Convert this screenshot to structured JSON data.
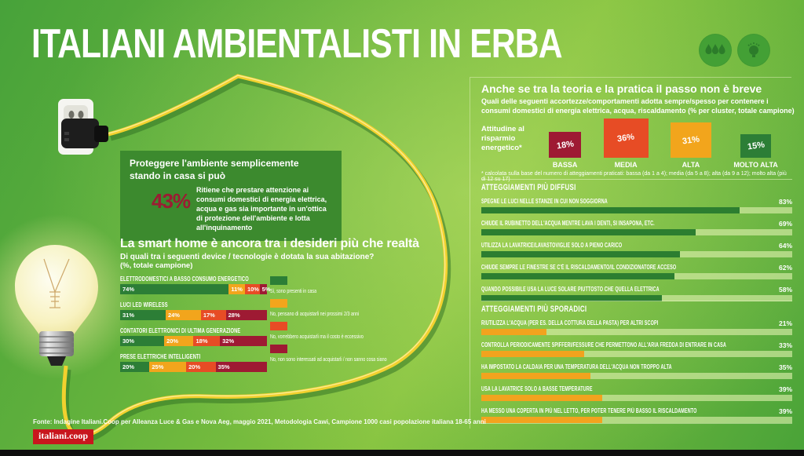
{
  "page": {
    "title": "ITALIANI AMBIENTALISTI IN ERBA",
    "footer_source": "Fonte: Indagine Italiani.Coop per Alleanza Luce & Gas e Nova Aeg, maggio 2021, Metodologia Cawi, Campione 1000 casi popolazione italiana 18-65 anni",
    "logo_text": "italiani.coop"
  },
  "colors": {
    "green_dark": "#2c7e36",
    "orange": "#f2a51c",
    "red_orange": "#e74c25",
    "crimson": "#9e1a33",
    "box_green": "#3c8a2e",
    "bar_track": "#d7eeb1",
    "cable_yellow": "#f2d12e",
    "logo_red": "#c8161d"
  },
  "bubble_box": {
    "heading": "Proteggere l'ambiente semplicemente stando in casa si può",
    "stat": "43%",
    "text": "Ritiene che prestare attenzione ai consumi domestici di energia elettrica, acqua e gas sia importante in un'ottica di protezione dell'ambiente e lotta all'inquinamento"
  },
  "smart_home": {
    "heading": "La smart home è ancora tra i desideri più che realtà",
    "subheading": "Di quali tra i seguenti device / tecnologie è dotata la sua abitazione?",
    "note": "(%, totale campione)"
  },
  "theory_practice": {
    "heading": "Anche se tra la teoria e la pratica il passo non è breve",
    "subheading": "Quali delle seguenti accortezze/comportamenti adotta sempre/spesso per contenere i consumi domestici di energia elettrica, acqua, riscaldamento (% per cluster, totale campione)",
    "attitude": {
      "label": "Attitudine al risparmio energetico*",
      "footnote": "* calcolata sulla base del numero di atteggiamenti praticati: bassa (da 1 a 4); media (da 5 a 8); alta (da 9 a 12); molto alta (più di 12 su 17)"
    },
    "diffusi_heading": "ATTEGGIAMENTI PIÙ DIFFUSI",
    "sporadici_heading": "ATTEGGIAMENTI PIÙ SPORADICI"
  },
  "chart_data": [
    {
      "type": "bar",
      "variant": "stacked-horizontal",
      "title": "La smart home è ancora tra i desideri più che realtà",
      "question": "Di quali tra i seguenti device / tecnologie è dotata la sua abitazione? (%, totale campione)",
      "categories": [
        "ELETTRODOMESTICI A BASSO CONSUMO ENERGETICO",
        "LUCI LED WIRELESS",
        "CONTATORI ELETTRONICI DI ULTIMA GENERAZIONE",
        "PRESE ELETTRICHE INTELLIGENTI"
      ],
      "series": [
        {
          "name": "Sì, sono presenti in casa",
          "color": "#2c7e36",
          "values": [
            74,
            31,
            30,
            20
          ]
        },
        {
          "name": "No, pensano di acquistarli nei prossimi 2/3 anni",
          "color": "#f2a51c",
          "values": [
            11,
            24,
            20,
            25
          ]
        },
        {
          "name": "No, vorrebbero acquistarli ma il costo è eccessivo",
          "color": "#e74c25",
          "values": [
            10,
            17,
            18,
            20
          ]
        },
        {
          "name": "No, non sono interessati ad acquistarli / non sanno cosa siano",
          "color": "#9e1a33",
          "values": [
            5,
            28,
            32,
            35
          ]
        }
      ],
      "xlim": [
        0,
        100
      ],
      "unit": "%",
      "legend_position": "right"
    },
    {
      "type": "bar",
      "variant": "vertical",
      "title": "Attitudine al risparmio energetico",
      "categories": [
        "BASSA",
        "MEDIA",
        "ALTA",
        "MOLTO ALTA"
      ],
      "values": [
        18,
        36,
        31,
        15
      ],
      "colors": [
        "#9e1a33",
        "#e74c25",
        "#f2a51c",
        "#2c7e36"
      ],
      "unit": "%"
    },
    {
      "type": "bar",
      "variant": "horizontal",
      "title": "ATTEGGIAMENTI PIÙ DIFFUSI",
      "bar_color": "#2c7e30",
      "categories": [
        "SPEGNE LE LUCI NELLE STANZE IN CUI NON SOGGIORNA",
        "CHIUDE IL RUBINETTO DELL'ACQUA MENTRE LAVA I DENTI, SI INSAPONA, ETC.",
        "UTILIZZA LA LAVATRICE/LAVASTOVIGLIE SOLO A PIENO CARICO",
        "CHIUDE SEMPRE LE FINESTRE SE C'È IL RISCALDAMENTO/IL CONDIZIONATORE ACCESO",
        "QUANDO POSSIBILE USA LA LUCE SOLARE PIUTTOSTO CHE QUELLA ELETTRICA"
      ],
      "values": [
        83,
        69,
        64,
        62,
        58
      ],
      "xlim": [
        0,
        100
      ],
      "unit": "%"
    },
    {
      "type": "bar",
      "variant": "horizontal",
      "title": "ATTEGGIAMENTI PIÙ SPORADICI",
      "bar_color": "#f2a31e",
      "categories": [
        "RIUTILIZZA L'ACQUA (PER ES. DELLA COTTURA DELLA PASTA) PER ALTRI SCOPI",
        "CONTROLLA PERIODICAMENTE SPIFFERI/FESSURE CHE PERMETTONO ALL'ARIA FREDDA DI ENTRARE IN CASA",
        "HA IMPOSTATO LA CALDAIA PER UNA TEMPERATURA DELL'ACQUA NON TROPPO ALTA",
        "USA LA LAVATRICE SOLO A BASSE TEMPERATURE",
        "HA MESSO UNA COPERTA IN PIÙ NEL LETTO, PER POTER TENERE PIÙ BASSO IL RISCALDAMENTO"
      ],
      "values": [
        21,
        33,
        35,
        39,
        39
      ],
      "xlim": [
        0,
        100
      ],
      "unit": "%"
    }
  ]
}
